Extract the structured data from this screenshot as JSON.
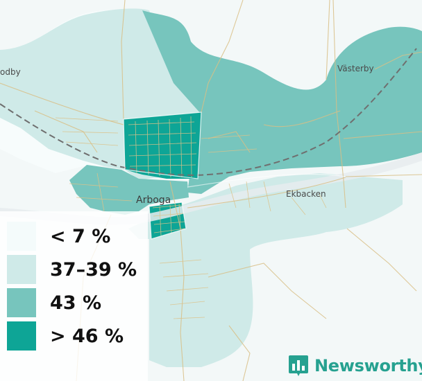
{
  "places": {
    "odby": "odby",
    "vasterby": "Västerby",
    "arboga": "Arboga",
    "ekbacken": "Ekbacken"
  },
  "legend": {
    "items": [
      {
        "label": "< 7 %",
        "color": "#f4fbfb"
      },
      {
        "label": "37–39 %",
        "color": "#cfeae8"
      },
      {
        "label": "43 %",
        "color": "#77c5bd"
      },
      {
        "label": "> 46 %",
        "color": "#0ea596"
      }
    ]
  },
  "brand": {
    "name": "Newsworthy",
    "color": "#26a190",
    "logo_icon": "bar-chart-logo-icon"
  },
  "colors": {
    "background": "#f3f8f8",
    "road": "#d9bf86",
    "railway": "#707070",
    "water": "#e6ecee"
  }
}
